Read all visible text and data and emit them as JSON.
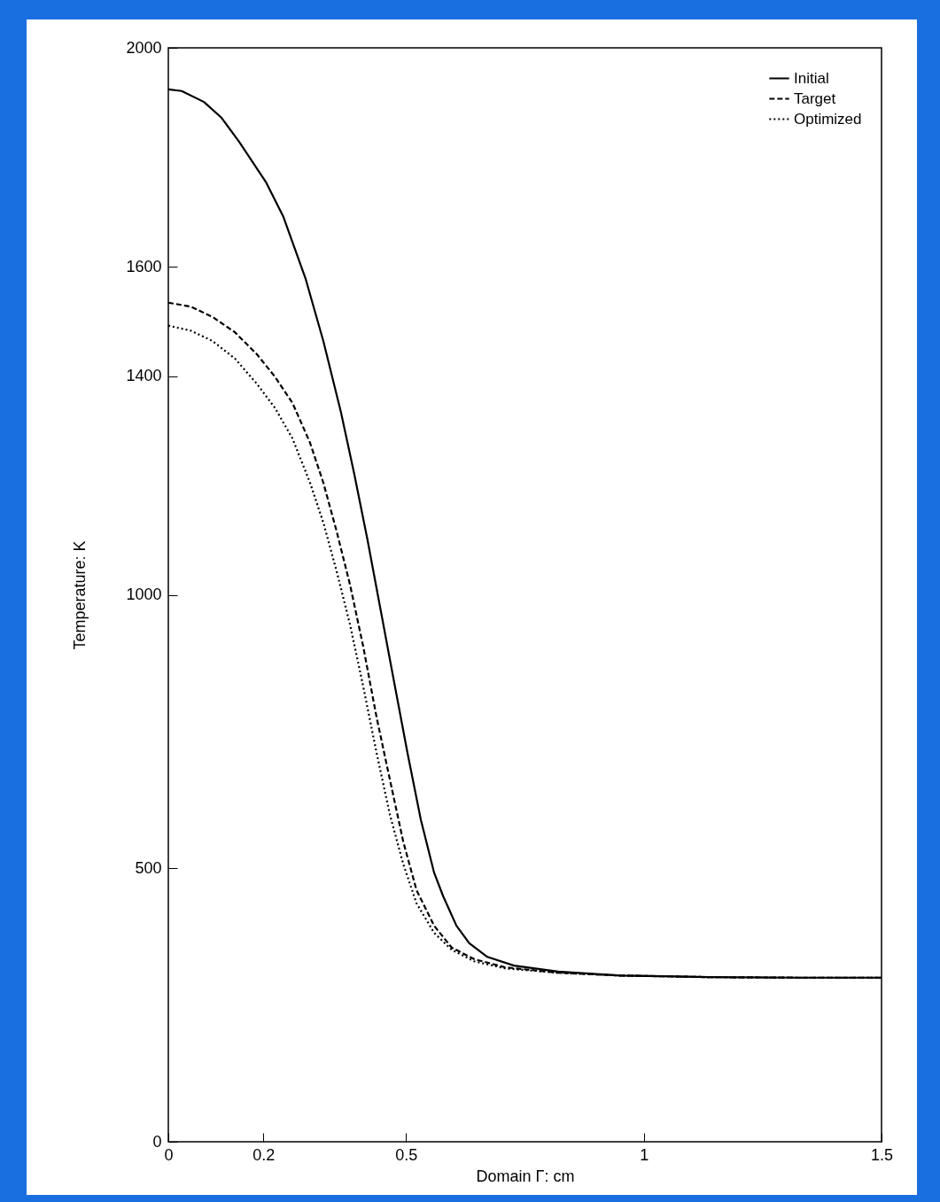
{
  "chart_data": {
    "type": "line",
    "xlabel": "Domain Γ: cm",
    "ylabel": "Temperature: K",
    "xlim": [
      0,
      1.5
    ],
    "xticks": [
      0,
      0.2,
      0.5,
      1,
      1.5
    ],
    "ylim": [
      0,
      2000
    ],
    "yticks": [
      0,
      500,
      1000,
      1400,
      1600,
      2000
    ],
    "grid": false,
    "legend": "top right",
    "marker": "none",
    "series": [
      {
        "name": "Initial",
        "color": "#000000",
        "line_style": "solid",
        "x": [
          0,
          0.028,
          0.075,
          0.112,
          0.149,
          0.205,
          0.242,
          0.289,
          0.326,
          0.363,
          0.391,
          0.419,
          0.447,
          0.475,
          0.503,
          0.531,
          0.559,
          0.578,
          0.606,
          0.633,
          0.671,
          0.727,
          0.82,
          0.95,
          1.137,
          1.323,
          1.5
        ],
        "values": [
          1924,
          1921,
          1901,
          1872,
          1828,
          1755,
          1691,
          1577,
          1464,
          1334,
          1221,
          1100,
          970,
          840,
          711,
          589,
          492,
          449,
          395,
          363,
          338,
          322,
          311,
          304,
          301,
          300,
          300
        ]
      },
      {
        "name": "Target",
        "color": "#000000",
        "line_style": "dashed",
        "x": [
          0,
          0.047,
          0.093,
          0.14,
          0.186,
          0.224,
          0.261,
          0.298,
          0.326,
          0.354,
          0.382,
          0.41,
          0.438,
          0.466,
          0.494,
          0.522,
          0.559,
          0.596,
          0.643,
          0.708,
          0.82,
          0.95,
          1.137,
          1.323,
          1.5
        ],
        "values": [
          1534,
          1527,
          1508,
          1480,
          1440,
          1399,
          1351,
          1278,
          1205,
          1116,
          1019,
          905,
          776,
          662,
          549,
          460,
          395,
          355,
          334,
          319,
          309,
          304,
          301,
          300,
          300
        ]
      },
      {
        "name": "Optimized",
        "color": "#000000",
        "line_style": "dotted",
        "x": [
          0,
          0.047,
          0.093,
          0.14,
          0.186,
          0.224,
          0.261,
          0.298,
          0.326,
          0.354,
          0.382,
          0.41,
          0.438,
          0.466,
          0.494,
          0.522,
          0.559,
          0.596,
          0.643,
          0.708,
          0.82,
          0.95,
          1.137,
          1.323,
          1.5
        ],
        "values": [
          1492,
          1483,
          1464,
          1432,
          1386,
          1342,
          1286,
          1205,
          1132,
          1043,
          946,
          832,
          711,
          598,
          508,
          436,
          382,
          351,
          330,
          317,
          309,
          304,
          301,
          300,
          300
        ]
      }
    ]
  }
}
